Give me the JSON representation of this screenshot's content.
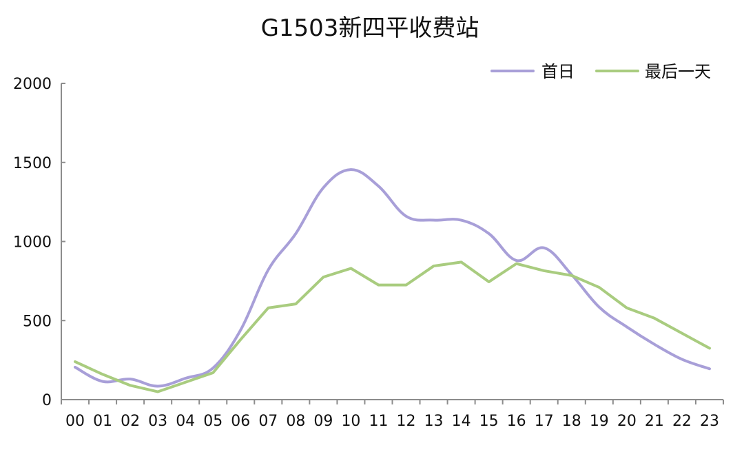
{
  "chart_data": {
    "type": "line",
    "title": "G1503新四平收费站",
    "xlabel": "",
    "ylabel": "",
    "ylim": [
      0,
      2000
    ],
    "yticks": [
      "0",
      "500",
      "1000",
      "1500",
      "2000"
    ],
    "categories": [
      "00",
      "01",
      "02",
      "03",
      "04",
      "05",
      "06",
      "07",
      "08",
      "09",
      "10",
      "11",
      "12",
      "13",
      "14",
      "15",
      "16",
      "17",
      "18",
      "19",
      "20",
      "21",
      "22",
      "23"
    ],
    "grid": false,
    "legend_position": "top-right",
    "series": [
      {
        "name": "首日",
        "color": "#a89fd8",
        "smooth": true,
        "values": [
          205,
          115,
          130,
          85,
          135,
          200,
          440,
          820,
          1050,
          1340,
          1455,
          1350,
          1160,
          1135,
          1135,
          1050,
          880,
          960,
          790,
          585,
          460,
          350,
          255,
          195
        ]
      },
      {
        "name": "最后一天",
        "color": "#a9cc7f",
        "smooth": false,
        "values": [
          240,
          160,
          90,
          50,
          110,
          170,
          380,
          580,
          605,
          775,
          830,
          725,
          725,
          845,
          870,
          745,
          860,
          815,
          785,
          710,
          580,
          515,
          420,
          325
        ]
      }
    ]
  }
}
